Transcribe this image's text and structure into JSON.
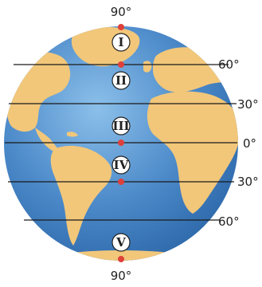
{
  "colors": {
    "ocean": "#4a88c8",
    "ocean_light": "#7fb2e0",
    "land": "#f2c77a",
    "latitude_line": "#1a1a1a",
    "marker": "#e0403a",
    "badge_fill": "#ffffff"
  },
  "labels": {
    "north_pole": "90°",
    "south_pole": "90°",
    "lat_60n": "60°",
    "lat_30n": "30°",
    "equator": "0°",
    "lat_30s": "30°",
    "lat_60s": "60°"
  },
  "zones": [
    {
      "id": "I",
      "label": "I"
    },
    {
      "id": "II",
      "label": "II"
    },
    {
      "id": "III",
      "label": "III"
    },
    {
      "id": "IV",
      "label": "IV"
    },
    {
      "id": "V",
      "label": "V"
    }
  ]
}
